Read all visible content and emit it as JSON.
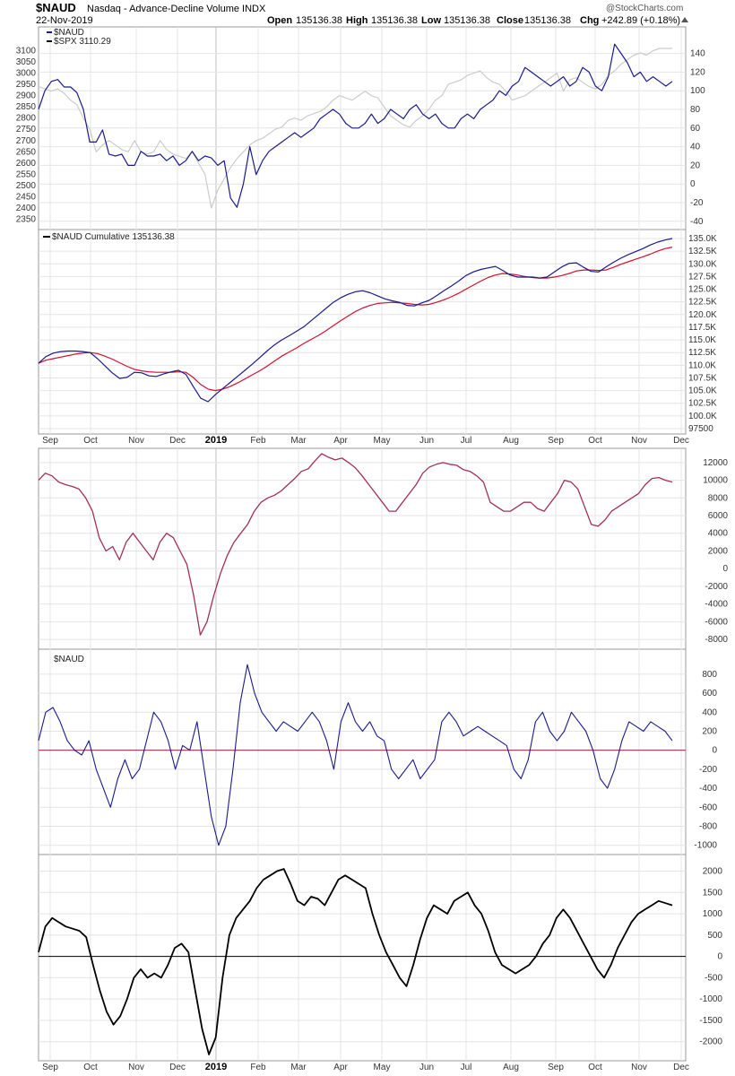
{
  "header": {
    "symbol": "$NAUD",
    "description": "Nasdaq - Advance-Decline Volume INDX",
    "date": "22-Nov-2019",
    "open_label": "Open",
    "open": "135136.38",
    "high_label": "High",
    "high": "135136.38",
    "low_label": "Low",
    "low": "135136.38",
    "close_label": "Close",
    "close": "135136.38",
    "chg_label": "Chg",
    "chg": "+242.89 (+0.18%)",
    "brand": "@StockCharts.com"
  },
  "colors": {
    "naud_line": "#1a1a8c",
    "spx_line": "#cccccc",
    "cumulative_line": "#1a1a8c",
    "cumulative_ma": "#d01030",
    "osc_purple": "#a0305a",
    "zero_red": "#a0305a",
    "osc_black": "#000000",
    "grid": "#e4e4e4"
  },
  "months": [
    "Sep",
    "Oct",
    "Nov",
    "Dec",
    "2019",
    "Feb",
    "Mar",
    "Apr",
    "May",
    "Jun",
    "Jul",
    "Aug",
    "Sep",
    "Oct",
    "Nov",
    "Dec"
  ],
  "chart_data": [
    {
      "type": "line",
      "panel": "price",
      "legend": [
        "$NAUD",
        "$SPX 3110.29"
      ],
      "left_axis_ticks": [
        2350,
        2400,
        2450,
        2500,
        2550,
        2600,
        2650,
        2700,
        2750,
        2800,
        2850,
        2900,
        2950,
        3000,
        3050,
        3100
      ],
      "right_axis_ticks": [
        -40,
        -20,
        0,
        20,
        40,
        60,
        80,
        100,
        120,
        140
      ],
      "left_range": [
        2320,
        3150
      ],
      "right_range": [
        -45,
        155
      ],
      "series": [
        {
          "name": "$NAUD",
          "axis": "right",
          "values": [
            80,
            100,
            110,
            112,
            104,
            104,
            98,
            80,
            45,
            45,
            58,
            32,
            30,
            32,
            20,
            20,
            35,
            30,
            30,
            32,
            25,
            30,
            20,
            25,
            35,
            25,
            30,
            28,
            20,
            25,
            -15,
            -25,
            0,
            40,
            10,
            25,
            35,
            40,
            45,
            50,
            55,
            50,
            55,
            60,
            70,
            75,
            80,
            75,
            65,
            60,
            60,
            65,
            75,
            65,
            70,
            80,
            75,
            70,
            80,
            85,
            75,
            70,
            75,
            65,
            60,
            60,
            70,
            75,
            70,
            80,
            85,
            90,
            100,
            95,
            105,
            110,
            125,
            120,
            115,
            110,
            105,
            110,
            115,
            105,
            110,
            125,
            120,
            105,
            100,
            115,
            150,
            140,
            130,
            115,
            120,
            110,
            115,
            110,
            105,
            110
          ]
        },
        {
          "name": "$SPX",
          "axis": "left",
          "values": [
            2940,
            2930,
            2920,
            2930,
            2910,
            2880,
            2860,
            2800,
            2750,
            2650,
            2680,
            2700,
            2680,
            2660,
            2650,
            2700,
            2650,
            2640,
            2650,
            2700,
            2660,
            2640,
            2630,
            2620,
            2650,
            2600,
            2550,
            2400,
            2480,
            2530,
            2580,
            2620,
            2650,
            2680,
            2700,
            2710,
            2730,
            2750,
            2760,
            2790,
            2800,
            2790,
            2810,
            2820,
            2830,
            2850,
            2880,
            2900,
            2890,
            2880,
            2900,
            2920,
            2900,
            2890,
            2850,
            2810,
            2790,
            2770,
            2760,
            2790,
            2810,
            2840,
            2880,
            2900,
            2950,
            2960,
            2970,
            2990,
            3000,
            3010,
            2980,
            2960,
            2950,
            2920,
            2880,
            2890,
            2900,
            2920,
            2940,
            2960,
            2980,
            3000,
            2920,
            2970,
            2980,
            2960,
            2940,
            2930,
            2950,
            2990,
            3010,
            3040,
            3060,
            3080,
            3090,
            3080,
            3100,
            3110,
            3110,
            3110
          ]
        }
      ]
    },
    {
      "type": "line",
      "panel": "cumulative",
      "legend": [
        "$NAUD Cumulative 135136.38"
      ],
      "right_axis_ticks": [
        "97500",
        "100.0K",
        "102.5K",
        "105.0K",
        "107.5K",
        "110.0K",
        "112.5K",
        "115.0K",
        "117.5K",
        "120.0K",
        "122.5K",
        "125.0K",
        "127.5K",
        "130.0K",
        "132.5K",
        "135.0K"
      ],
      "y_range": [
        97500,
        135000
      ],
      "series": [
        {
          "name": "$NAUD Cumulative",
          "values": [
            110400,
            111700,
            112400,
            112700,
            112800,
            112800,
            112700,
            112500,
            111300,
            109900,
            108500,
            107400,
            107600,
            108600,
            108500,
            107900,
            107800,
            108300,
            108700,
            109000,
            108200,
            105800,
            103500,
            102800,
            104200,
            105400,
            106600,
            107800,
            109000,
            110200,
            111500,
            112800,
            114000,
            115000,
            115800,
            116700,
            117600,
            118800,
            120000,
            121200,
            122400,
            123300,
            124000,
            124500,
            124700,
            124300,
            123700,
            123100,
            122700,
            122400,
            121800,
            121700,
            122300,
            122800,
            123700,
            124700,
            125600,
            126600,
            127700,
            128400,
            128900,
            129200,
            129500,
            128700,
            127800,
            127400,
            127400,
            127400,
            127200,
            127400,
            128400,
            129400,
            130100,
            130200,
            129300,
            128500,
            128400,
            129400,
            130300,
            131100,
            131800,
            132400,
            133000,
            133700,
            134300,
            134700,
            135000
          ]
        },
        {
          "name": "Moving average",
          "values": [
            110400,
            111000,
            111300,
            111600,
            111900,
            112200,
            112400,
            112500,
            112300,
            111800,
            111200,
            110500,
            109800,
            109200,
            108900,
            108700,
            108600,
            108600,
            108600,
            108700,
            108600,
            107600,
            106200,
            105300,
            105000,
            105300,
            105800,
            106500,
            107300,
            108100,
            108900,
            109800,
            110800,
            111800,
            112600,
            113400,
            114300,
            115100,
            115900,
            116800,
            117800,
            118800,
            119700,
            120600,
            121300,
            121800,
            122200,
            122300,
            122400,
            122300,
            122200,
            122000,
            121900,
            122000,
            122400,
            122900,
            123500,
            124200,
            125000,
            125800,
            126600,
            127300,
            127800,
            128100,
            128000,
            127800,
            127500,
            127300,
            127200,
            127200,
            127400,
            127700,
            128100,
            128600,
            128800,
            128800,
            128700,
            128800,
            129300,
            129900,
            130400,
            130900,
            131400,
            131900,
            132500,
            133000,
            133300
          ]
        }
      ]
    },
    {
      "type": "line",
      "panel": "oscillator_purple",
      "right_axis_ticks": [
        -8000,
        -6000,
        -4000,
        -2000,
        0,
        2000,
        4000,
        6000,
        8000,
        10000,
        12000
      ],
      "y_range": [
        -8500,
        13000
      ],
      "series": [
        {
          "name": "",
          "values": [
            10000,
            10800,
            10500,
            9800,
            9500,
            9300,
            9000,
            8000,
            6500,
            3500,
            2000,
            2500,
            1000,
            3000,
            4000,
            3000,
            2000,
            1000,
            3000,
            4000,
            3500,
            2000,
            500,
            -3000,
            -7500,
            -6000,
            -3000,
            -500,
            1500,
            3000,
            4000,
            5000,
            6500,
            7500,
            8000,
            8300,
            8800,
            9500,
            10200,
            11000,
            11300,
            12200,
            13000,
            12600,
            12300,
            12500,
            12000,
            11400,
            10500,
            9500,
            8500,
            7500,
            6500,
            6500,
            7500,
            8500,
            9500,
            10800,
            11500,
            11800,
            12000,
            11800,
            11700,
            11200,
            11000,
            10500,
            9800,
            7500,
            7000,
            6500,
            6500,
            7000,
            7500,
            7500,
            6800,
            6500,
            7500,
            8500,
            10000,
            9800,
            9000,
            7000,
            5000,
            4800,
            5500,
            6500,
            7000,
            7500,
            8000,
            8500,
            9500,
            10200,
            10300,
            10000,
            9800
          ]
        }
      ]
    },
    {
      "type": "line",
      "panel": "naud",
      "legend": [
        "$NAUD"
      ],
      "right_axis_ticks": [
        -1000,
        -800,
        -600,
        -400,
        -200,
        0,
        200,
        400,
        600,
        800
      ],
      "y_range": [
        -1050,
        950
      ],
      "series": [
        {
          "name": "$NAUD",
          "values": [
            100,
            400,
            450,
            300,
            100,
            0,
            -50,
            100,
            -200,
            -400,
            -600,
            -300,
            -100,
            -300,
            -200,
            100,
            400,
            300,
            100,
            -200,
            50,
            0,
            300,
            -200,
            -700,
            -1000,
            -800,
            -200,
            500,
            900,
            600,
            400,
            300,
            200,
            300,
            250,
            200,
            300,
            400,
            300,
            100,
            -200,
            300,
            500,
            300,
            200,
            300,
            150,
            100,
            -200,
            -300,
            -200,
            -100,
            -300,
            -200,
            -100,
            300,
            400,
            300,
            150,
            200,
            250,
            200,
            150,
            100,
            50,
            -200,
            -300,
            -100,
            300,
            400,
            200,
            100,
            200,
            400,
            300,
            200,
            0,
            -300,
            -400,
            -200,
            100,
            300,
            250,
            200,
            300,
            250,
            200,
            100
          ]
        }
      ]
    },
    {
      "type": "line",
      "panel": "oscillator_black",
      "right_axis_ticks": [
        -2000,
        -1500,
        -1000,
        -500,
        0,
        500,
        1000,
        1500,
        2000
      ],
      "y_range": [
        -2300,
        2200
      ],
      "series": [
        {
          "name": "",
          "values": [
            100,
            700,
            900,
            800,
            700,
            650,
            600,
            450,
            -200,
            -800,
            -1300,
            -1600,
            -1400,
            -1000,
            -500,
            -300,
            -500,
            -400,
            -500,
            -200,
            200,
            300,
            100,
            -800,
            -1700,
            -2300,
            -1900,
            -500,
            500,
            900,
            1100,
            1300,
            1600,
            1800,
            1900,
            2000,
            2050,
            1700,
            1300,
            1200,
            1400,
            1350,
            1200,
            1500,
            1800,
            1900,
            1800,
            1700,
            1600,
            1000,
            500,
            100,
            -200,
            -500,
            -700,
            -200,
            400,
            900,
            1200,
            1100,
            1000,
            1300,
            1400,
            1500,
            1200,
            1000,
            600,
            100,
            -200,
            -300,
            -400,
            -300,
            -200,
            0,
            300,
            500,
            900,
            1100,
            900,
            600,
            300,
            0,
            -300,
            -500,
            -200,
            200,
            500,
            800,
            1000,
            1100,
            1200,
            1300,
            1250,
            1200
          ]
        }
      ]
    }
  ]
}
